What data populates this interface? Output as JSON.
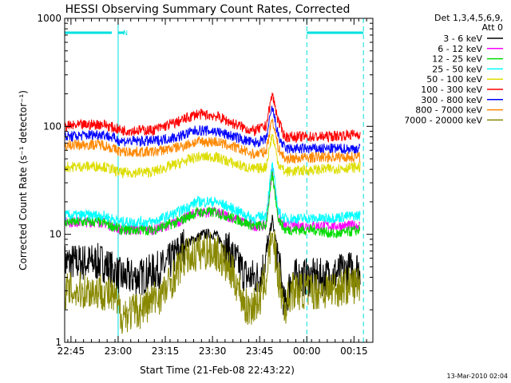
{
  "chart_data": {
    "type": "line",
    "title": "HESSI Observing Summary Count Rates, Corrected",
    "ylabel": "Corrected Count Rate (s⁻¹ detector⁻¹)",
    "xlabel": "Start Time (21-Feb-08 22:43:22)",
    "yscale": "log",
    "ylim": [
      1,
      1000
    ],
    "xlim": [
      -2,
      96
    ],
    "x_units": "minutes after 22:45 UT",
    "x_ticks": [
      {
        "t": 0,
        "label": "22:45"
      },
      {
        "t": 15,
        "label": "23:00"
      },
      {
        "t": 30,
        "label": "23:15"
      },
      {
        "t": 45,
        "label": "23:30"
      },
      {
        "t": 60,
        "label": "23:45"
      },
      {
        "t": 75,
        "label": "00:00"
      },
      {
        "t": 90,
        "label": "00:15"
      }
    ],
    "y_ticks": [
      {
        "v": 1,
        "label": "1"
      },
      {
        "v": 10,
        "label": "10"
      },
      {
        "v": 100,
        "label": "100"
      },
      {
        "v": 1000,
        "label": "1000"
      }
    ],
    "legend_header": [
      "Det 1,3,4,5,6,9,",
      "Att 0"
    ],
    "legend_position": "right",
    "series": [
      {
        "name": "3 - 6 keV",
        "color": "#000000",
        "points": [
          [
            -2,
            5.5
          ],
          [
            10,
            5.5
          ],
          [
            16,
            4
          ],
          [
            22,
            4
          ],
          [
            30,
            5
          ],
          [
            36,
            8
          ],
          [
            42,
            10
          ],
          [
            46,
            10
          ],
          [
            52,
            6
          ],
          [
            56,
            4
          ],
          [
            60,
            4
          ],
          [
            62,
            6
          ],
          [
            64,
            14
          ],
          [
            66,
            6
          ],
          [
            68,
            2
          ],
          [
            70,
            4
          ],
          [
            80,
            4
          ],
          [
            92,
            5
          ]
        ]
      },
      {
        "name": "6 - 12 keV",
        "color": "#ff00ff",
        "points": [
          [
            -2,
            13
          ],
          [
            10,
            13
          ],
          [
            16,
            11
          ],
          [
            26,
            11
          ],
          [
            34,
            13
          ],
          [
            40,
            16
          ],
          [
            46,
            16
          ],
          [
            52,
            14
          ],
          [
            58,
            12
          ],
          [
            62,
            12
          ],
          [
            64,
            40
          ],
          [
            66,
            14
          ],
          [
            68,
            12
          ],
          [
            80,
            12
          ],
          [
            92,
            12
          ]
        ]
      },
      {
        "name": "12 - 25 keV",
        "color": "#00dd00",
        "points": [
          [
            -2,
            13
          ],
          [
            10,
            13
          ],
          [
            16,
            11
          ],
          [
            26,
            11
          ],
          [
            34,
            13
          ],
          [
            40,
            16
          ],
          [
            46,
            16
          ],
          [
            52,
            14
          ],
          [
            58,
            12
          ],
          [
            62,
            12
          ],
          [
            64,
            36
          ],
          [
            66,
            14
          ],
          [
            68,
            11
          ],
          [
            78,
            11
          ],
          [
            84,
            10
          ],
          [
            92,
            11
          ]
        ]
      },
      {
        "name": "25 - 50 keV",
        "color": "#00ffff",
        "points": [
          [
            -2,
            15
          ],
          [
            10,
            15
          ],
          [
            16,
            13
          ],
          [
            26,
            13
          ],
          [
            34,
            16
          ],
          [
            40,
            20
          ],
          [
            46,
            20
          ],
          [
            52,
            17
          ],
          [
            58,
            14
          ],
          [
            62,
            15
          ],
          [
            64,
            45
          ],
          [
            66,
            16
          ],
          [
            68,
            14
          ],
          [
            80,
            14
          ],
          [
            92,
            15
          ]
        ]
      },
      {
        "name": "50 - 100 keV",
        "color": "#dddd00",
        "points": [
          [
            -2,
            42
          ],
          [
            10,
            43
          ],
          [
            16,
            37
          ],
          [
            26,
            38
          ],
          [
            34,
            45
          ],
          [
            40,
            52
          ],
          [
            46,
            52
          ],
          [
            52,
            45
          ],
          [
            58,
            40
          ],
          [
            62,
            42
          ],
          [
            64,
            85
          ],
          [
            66,
            45
          ],
          [
            68,
            38
          ],
          [
            80,
            40
          ],
          [
            92,
            42
          ]
        ]
      },
      {
        "name": "100 - 300 keV",
        "color": "#ff0000",
        "points": [
          [
            -2,
            100
          ],
          [
            10,
            105
          ],
          [
            16,
            92
          ],
          [
            26,
            92
          ],
          [
            34,
            110
          ],
          [
            40,
            130
          ],
          [
            46,
            125
          ],
          [
            52,
            105
          ],
          [
            58,
            90
          ],
          [
            62,
            100
          ],
          [
            64,
            200
          ],
          [
            66,
            110
          ],
          [
            68,
            80
          ],
          [
            80,
            80
          ],
          [
            92,
            85
          ]
        ]
      },
      {
        "name": "300 - 800 keV",
        "color": "#0000ff",
        "points": [
          [
            -2,
            80
          ],
          [
            10,
            85
          ],
          [
            16,
            73
          ],
          [
            26,
            73
          ],
          [
            34,
            80
          ],
          [
            40,
            92
          ],
          [
            46,
            90
          ],
          [
            52,
            80
          ],
          [
            58,
            70
          ],
          [
            62,
            75
          ],
          [
            64,
            150
          ],
          [
            66,
            80
          ],
          [
            68,
            62
          ],
          [
            80,
            62
          ],
          [
            92,
            62
          ]
        ]
      },
      {
        "name": "800 - 7000 keV",
        "color": "#ff8800",
        "points": [
          [
            -2,
            67
          ],
          [
            10,
            68
          ],
          [
            16,
            58
          ],
          [
            26,
            58
          ],
          [
            34,
            64
          ],
          [
            40,
            72
          ],
          [
            46,
            72
          ],
          [
            52,
            64
          ],
          [
            58,
            55
          ],
          [
            62,
            58
          ],
          [
            64,
            120
          ],
          [
            66,
            62
          ],
          [
            68,
            50
          ],
          [
            80,
            52
          ],
          [
            92,
            52
          ]
        ]
      },
      {
        "name": "7000 - 20000 keV",
        "color": "#888800",
        "points": [
          [
            -2,
            3
          ],
          [
            10,
            3
          ],
          [
            14,
            2.5
          ],
          [
            16,
            1.8
          ],
          [
            22,
            2
          ],
          [
            30,
            3
          ],
          [
            36,
            6
          ],
          [
            42,
            7
          ],
          [
            46,
            7
          ],
          [
            52,
            4
          ],
          [
            56,
            2
          ],
          [
            60,
            2.5
          ],
          [
            62,
            4
          ],
          [
            64,
            10
          ],
          [
            66,
            4
          ],
          [
            68,
            2
          ],
          [
            70,
            3
          ],
          [
            80,
            3
          ],
          [
            92,
            3.5
          ]
        ]
      }
    ],
    "shading_bars": [
      {
        "t0": -2,
        "t1": 13,
        "flag": ""
      },
      {
        "t0": 15,
        "t1": 17,
        "flag": "N"
      },
      {
        "t0": 75,
        "t1": 93,
        "flag": ""
      }
    ],
    "attenuator_lines": [
      15,
      75,
      93
    ]
  },
  "footer": {
    "timestamp": "13-Mar-2010 02:04"
  }
}
